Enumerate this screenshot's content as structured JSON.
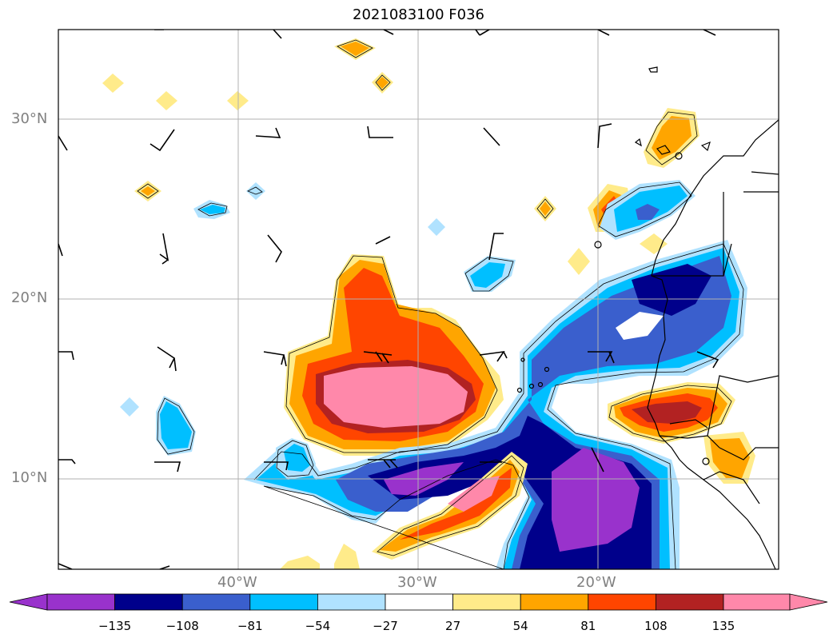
{
  "title": "2021083100 F036",
  "lat_labels": [
    "30°N",
    "20°N",
    "10°N"
  ],
  "lon_labels": [
    "40°W",
    "30°W",
    "20°W"
  ],
  "colorbar": {
    "ticks": [
      "−135",
      "−108",
      "−81",
      "−54",
      "−27",
      "27",
      "54",
      "81",
      "108",
      "135"
    ],
    "colors": [
      "#9932cc",
      "#00008b",
      "#3a5fcd",
      "#00bfff",
      "#b0e2ff",
      "#ffffff",
      "#ffeb8a",
      "#ffa500",
      "#ff4500",
      "#b22222",
      "#ff88aa"
    ]
  },
  "map": {
    "lat_range": [
      5,
      35
    ],
    "lon_range": [
      -50,
      -10
    ],
    "grid": true,
    "layers": [
      "filled-contours",
      "contour-lines",
      "wind-barbs",
      "coastlines",
      "country-borders"
    ]
  }
}
